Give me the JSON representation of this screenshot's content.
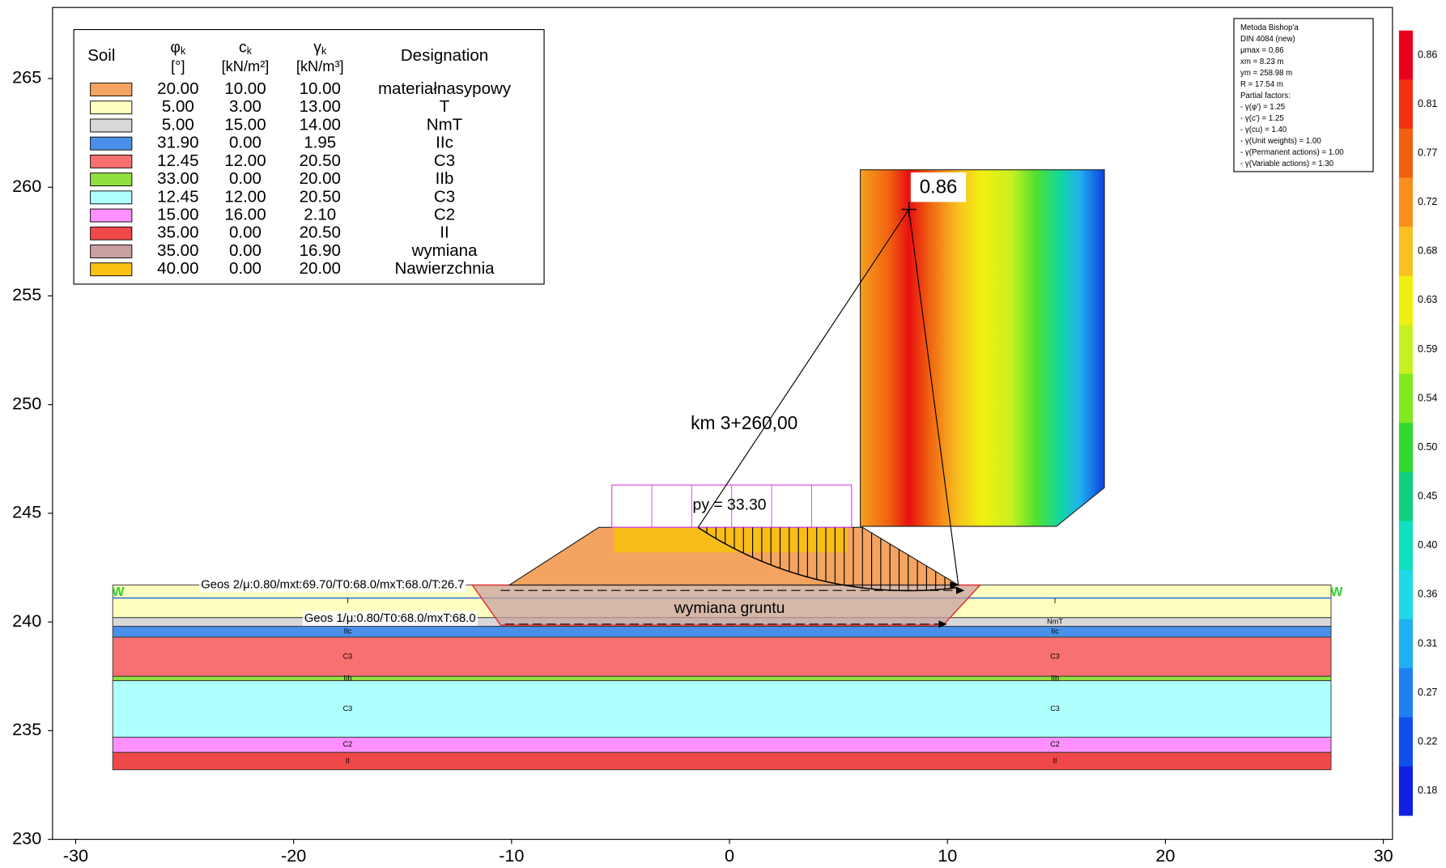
{
  "chart_data": {
    "type": "section",
    "xlim": [
      -31.06,
      30.42
    ],
    "ylim": [
      230,
      268.27
    ],
    "xticks": [
      -30,
      -20,
      -10,
      0,
      10,
      20,
      30
    ],
    "yticks": [
      230,
      235,
      240,
      245,
      250,
      255,
      260,
      265
    ],
    "soils": {
      "columns": [
        {
          "name": "Soil"
        },
        {
          "name": "φ",
          "sub": "k",
          "unit": "[°]"
        },
        {
          "name": "c",
          "sub": "k",
          "unit": "[kN/m²]"
        },
        {
          "name": "γ",
          "sub": "k",
          "unit": "[kN/m³]"
        },
        {
          "name": "Designation"
        }
      ],
      "rows": [
        {
          "color": "#f4a460",
          "cells": [
            "20.00",
            "10.00",
            "10.00",
            "materiałnasypowy"
          ]
        },
        {
          "color": "#ffffc0",
          "cells": [
            "5.00",
            "3.00",
            "13.00",
            "T"
          ]
        },
        {
          "color": "#d8d8d8",
          "cells": [
            "5.00",
            "15.00",
            "14.00",
            "NmT"
          ]
        },
        {
          "color": "#4a90e8",
          "cells": [
            "31.90",
            "0.00",
            "1.95",
            "IIc"
          ]
        },
        {
          "color": "#f87070",
          "cells": [
            "12.45",
            "12.00",
            "20.50",
            "C3"
          ]
        },
        {
          "color": "#90e040",
          "cells": [
            "33.00",
            "0.00",
            "20.00",
            "IIb"
          ]
        },
        {
          "color": "#b0ffff",
          "cells": [
            "12.45",
            "12.00",
            "20.50",
            "C3"
          ]
        },
        {
          "color": "#ff90ff",
          "cells": [
            "15.00",
            "16.00",
            "2.10",
            "C2"
          ]
        },
        {
          "color": "#f04848",
          "cells": [
            "35.00",
            "0.00",
            "20.50",
            "II"
          ]
        },
        {
          "color": "#c8a0a0",
          "cells": [
            "35.00",
            "0.00",
            "16.90",
            "wymiana"
          ]
        },
        {
          "color": "#f8c010",
          "cells": [
            "40.00",
            "0.00",
            "20.00",
            "Nawierzchnia"
          ]
        }
      ]
    },
    "layers_x": [
      -28.3,
      27.6
    ],
    "layers": [
      {
        "label": "T",
        "soil": 1,
        "top": 241.7,
        "bottom": 240.2
      },
      {
        "label": "NmT",
        "soil": 2,
        "top": 240.2,
        "bottom": 239.8
      },
      {
        "label": "IIc",
        "soil": 3,
        "top": 239.8,
        "bottom": 239.3
      },
      {
        "label": "C3",
        "soil": 4,
        "top": 239.3,
        "bottom": 237.5
      },
      {
        "label": "IIb",
        "soil": 5,
        "top": 237.5,
        "bottom": 237.3
      },
      {
        "label": "C3",
        "soil": 6,
        "top": 237.3,
        "bottom": 234.7
      },
      {
        "label": "C2",
        "soil": 7,
        "top": 234.7,
        "bottom": 234.0
      },
      {
        "label": "II",
        "soil": 8,
        "top": 234.0,
        "bottom": 233.2
      }
    ],
    "water": {
      "label": "W",
      "level": 241.1
    },
    "embankment": {
      "soil": 0,
      "points": [
        [
          -10.1,
          241.7
        ],
        [
          -6.0,
          244.35
        ],
        [
          6.1,
          244.35
        ],
        [
          10.5,
          241.7
        ]
      ]
    },
    "replacement": {
      "soil": 9,
      "label": "wymiana gruntu",
      "points": [
        [
          -11.8,
          241.7
        ],
        [
          11.5,
          241.7
        ],
        [
          9.8,
          239.85
        ],
        [
          -10.5,
          239.85
        ]
      ]
    },
    "pavement": {
      "soil": 10,
      "points": [
        [
          -5.3,
          244.35
        ],
        [
          5.4,
          244.35
        ],
        [
          5.4,
          243.2
        ],
        [
          -5.3,
          243.2
        ]
      ]
    },
    "load": {
      "label": "py = 33.30",
      "x": [
        -5.4,
        5.6
      ],
      "top": 246.3,
      "bottom": 244.35
    },
    "geotextiles": [
      {
        "label": "Geos 2/μ:0.80/mxt:69.70/T0:68.0/mxT:68.0/T:26.7",
        "y": 241.45,
        "x": [
          -10.5,
          10.4
        ]
      },
      {
        "label": "Geos 1/μ:0.80/T0:68.0/mxT:68.0",
        "y": 239.9,
        "x": [
          -10.3,
          9.6
        ]
      }
    ],
    "section_label": "km 3+260,00",
    "search_grid": {
      "x": [
        6.0,
        17.2
      ],
      "y": [
        244.4,
        260.8
      ]
    },
    "slip_circle": {
      "label": "0.86",
      "x": 8.23,
      "y": 258.98,
      "r": 17.54
    },
    "info": [
      "Metoda Bishop'a",
      "DIN 4084 (new)",
      "μmax = 0.86",
      "xm = 8.23 m",
      "ym = 258.98 m",
      "R = 17.54 m",
      "Partial factors:",
      " - γ(φ') = 1.25",
      " - γ(c') = 1.25",
      " - γ(cu) = 1.40",
      " - γ(Unit weights) = 1.00",
      " - γ(Permanent actions) = 1.00",
      " - γ(Variable actions) = 1.30"
    ],
    "colorbar": {
      "labels": [
        0.86,
        0.81,
        0.77,
        0.72,
        0.68,
        0.63,
        0.59,
        0.54,
        {
          "value": 0.5,
          "label": "0.50"
        },
        0.45,
        {
          "value": 0.4,
          "label": "0.40"
        },
        0.36,
        0.31,
        0.27,
        0.22,
        0.18
      ],
      "colors": [
        "#e8001c",
        "#f03010",
        "#f06010",
        "#f89020",
        "#f8c020",
        "#f0f010",
        "#c8f020",
        "#80e820",
        "#30d830",
        "#10d080",
        "#10e0c0",
        "#20d8e8",
        "#20b0f0",
        "#2080f0",
        "#1050e8",
        "#1020e0"
      ]
    }
  }
}
